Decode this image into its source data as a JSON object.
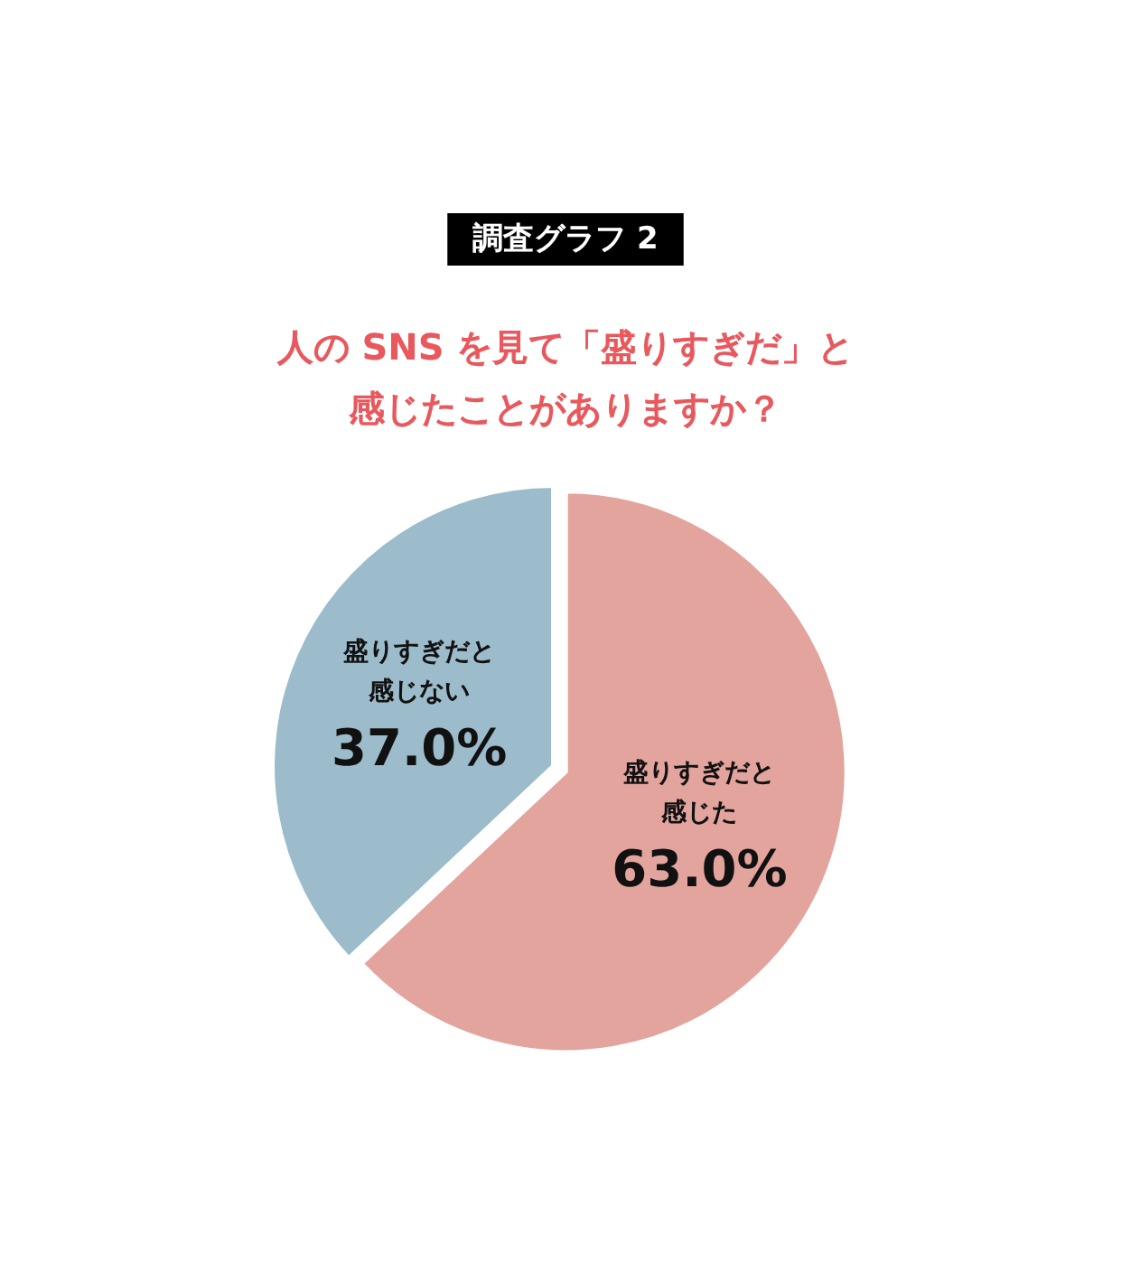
{
  "chart_data": {
    "type": "pie",
    "title": "調査グラフ 2",
    "subtitle": "人の SNS を見て「盛りすぎだ」と感じたことがありますか？",
    "categories": [
      "盛りすぎだと感じた",
      "盛りすぎだと感じない"
    ],
    "values": [
      63.0,
      37.0
    ],
    "colors": [
      "#e3a49e",
      "#9dbccb"
    ],
    "value_labels": [
      "63.0%",
      "37.0%"
    ],
    "legend": false
  }
}
